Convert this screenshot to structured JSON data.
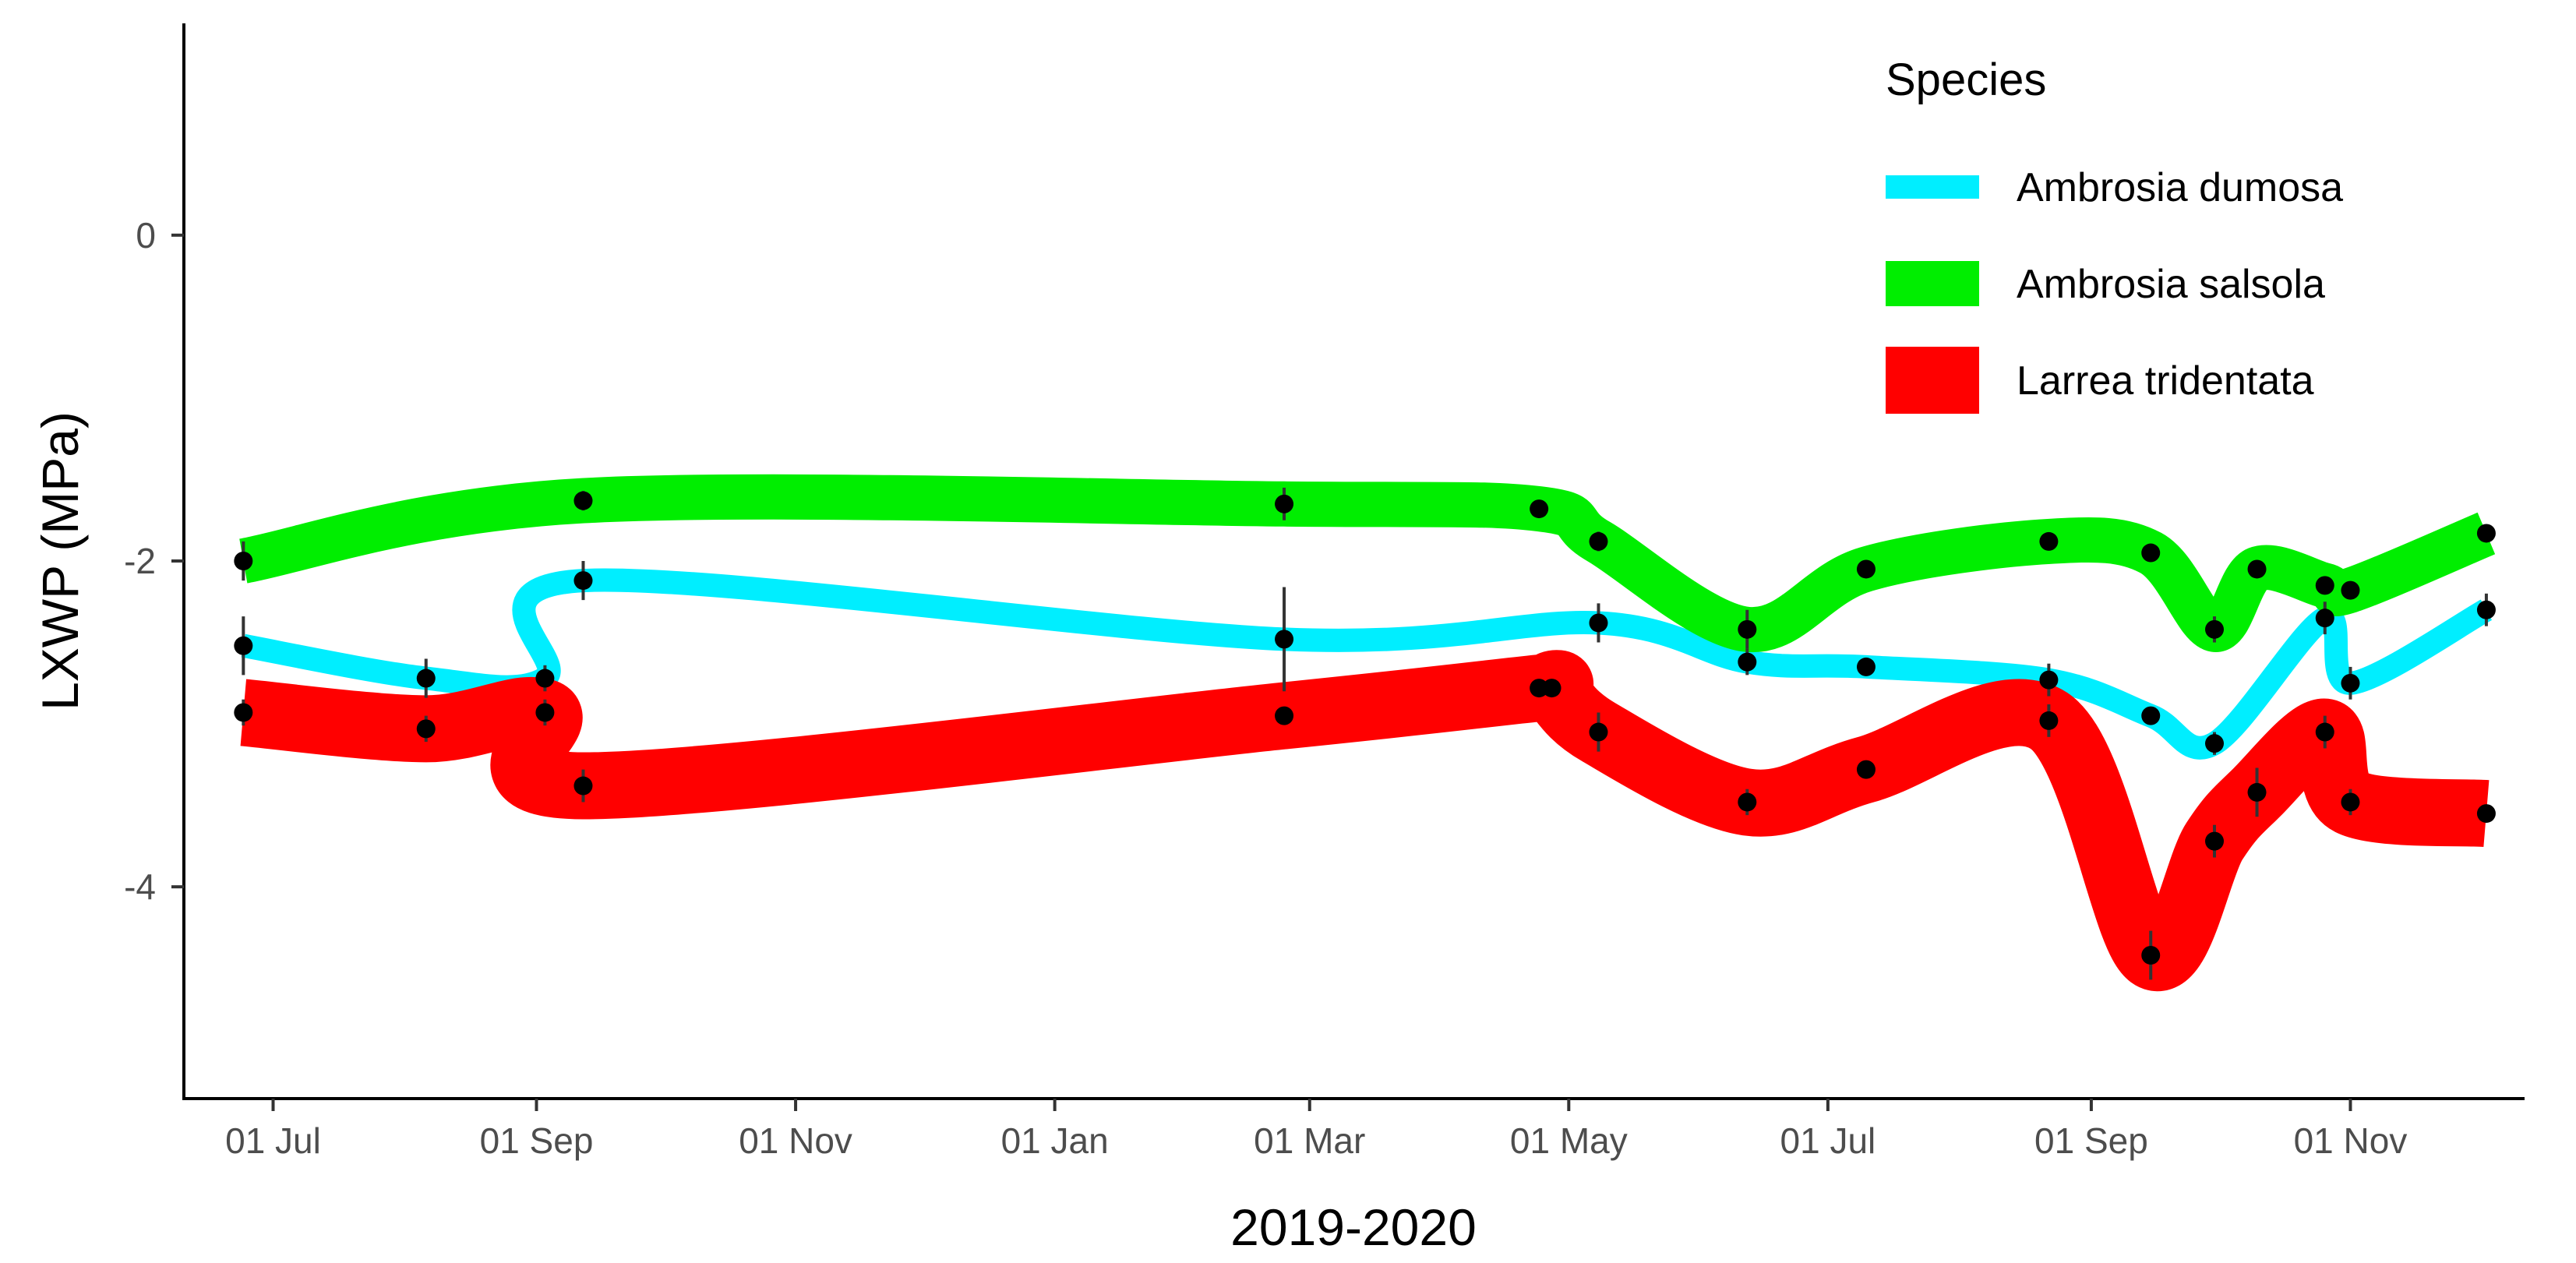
{
  "chart_data": {
    "type": "line",
    "xlabel": "2019-2020",
    "ylabel": "LXWP (MPa)",
    "xlim": [
      "2019-06-10",
      "2020-12-12"
    ],
    "ylim": [
      -5.3,
      1.3
    ],
    "x_ticks": [
      {
        "date": "2019-07-01",
        "label": "01 Jul"
      },
      {
        "date": "2019-09-01",
        "label": "01 Sep"
      },
      {
        "date": "2019-11-01",
        "label": "01 Nov"
      },
      {
        "date": "2020-01-01",
        "label": "01 Jan"
      },
      {
        "date": "2020-03-01",
        "label": "01 Mar"
      },
      {
        "date": "2020-05-01",
        "label": "01 May"
      },
      {
        "date": "2020-07-01",
        "label": "01 Jul"
      },
      {
        "date": "2020-09-01",
        "label": "01 Sep"
      },
      {
        "date": "2020-11-01",
        "label": "01 Nov"
      }
    ],
    "y_ticks": [
      {
        "value": 0,
        "label": "0"
      },
      {
        "value": -2,
        "label": "-2"
      },
      {
        "value": -4,
        "label": "-4"
      }
    ],
    "grid": false,
    "legend": {
      "title": "Species",
      "position": "top-right"
    },
    "series": [
      {
        "name": "Ambrosia dumosa",
        "color": "#00eeff",
        "points": [
          {
            "date": "2019-06-24",
            "mean": -2.52,
            "se": 0.18
          },
          {
            "date": "2019-08-06",
            "mean": -2.72,
            "se": 0.12
          },
          {
            "date": "2019-09-03",
            "mean": -2.72,
            "se": 0.08
          },
          {
            "date": "2019-09-12",
            "mean": -2.12,
            "se": 0.12
          },
          {
            "date": "2020-02-24",
            "mean": -2.48,
            "se": 0.32
          },
          {
            "date": "2020-05-08",
            "mean": -2.38,
            "se": 0.12
          },
          {
            "date": "2020-06-12",
            "mean": -2.62,
            "se": 0.08
          },
          {
            "date": "2020-07-10",
            "mean": -2.65,
            "se": 0.05
          },
          {
            "date": "2020-08-22",
            "mean": -2.73,
            "se": 0.1
          },
          {
            "date": "2020-09-15",
            "mean": -2.95,
            "se": 0.05
          },
          {
            "date": "2020-09-30",
            "mean": -3.12,
            "se": 0.07
          },
          {
            "date": "2020-10-26",
            "mean": -2.35,
            "se": 0.1
          },
          {
            "date": "2020-11-01",
            "mean": -2.75,
            "se": 0.1
          },
          {
            "date": "2020-12-03",
            "mean": -2.3,
            "se": 0.1
          }
        ]
      },
      {
        "name": "Ambrosia salsola",
        "color": "#00ee00",
        "points": [
          {
            "date": "2019-06-24",
            "mean": -2.0,
            "se": 0.12
          },
          {
            "date": "2019-09-12",
            "mean": -1.63,
            "se": 0.06
          },
          {
            "date": "2020-02-24",
            "mean": -1.65,
            "se": 0.1
          },
          {
            "date": "2020-04-24",
            "mean": -1.68,
            "se": 0.05
          },
          {
            "date": "2020-05-08",
            "mean": -1.88,
            "se": 0.06
          },
          {
            "date": "2020-06-12",
            "mean": -2.42,
            "se": 0.12
          },
          {
            "date": "2020-07-10",
            "mean": -2.05,
            "se": 0.05
          },
          {
            "date": "2020-08-22",
            "mean": -1.88,
            "se": 0.05
          },
          {
            "date": "2020-09-15",
            "mean": -1.95,
            "se": 0.05
          },
          {
            "date": "2020-09-30",
            "mean": -2.42,
            "se": 0.08
          },
          {
            "date": "2020-10-10",
            "mean": -2.05,
            "se": 0.05
          },
          {
            "date": "2020-10-26",
            "mean": -2.15,
            "se": 0.05
          },
          {
            "date": "2020-11-01",
            "mean": -2.18,
            "se": 0.05
          },
          {
            "date": "2020-12-03",
            "mean": -1.83,
            "se": 0.05
          }
        ]
      },
      {
        "name": "Larrea tridentata",
        "color": "#ff0000",
        "points": [
          {
            "date": "2019-06-24",
            "mean": -2.93,
            "se": 0.08
          },
          {
            "date": "2019-08-06",
            "mean": -3.03,
            "se": 0.08
          },
          {
            "date": "2019-09-03",
            "mean": -2.93,
            "se": 0.08
          },
          {
            "date": "2019-09-12",
            "mean": -3.38,
            "se": 0.1
          },
          {
            "date": "2020-02-24",
            "mean": -2.95,
            "se": 0.05
          },
          {
            "date": "2020-04-24",
            "mean": -2.78,
            "se": 0.05
          },
          {
            "date": "2020-04-27",
            "mean": -2.78,
            "se": 0.05
          },
          {
            "date": "2020-05-08",
            "mean": -3.05,
            "se": 0.12
          },
          {
            "date": "2020-06-12",
            "mean": -3.48,
            "se": 0.08
          },
          {
            "date": "2020-07-10",
            "mean": -3.28,
            "se": 0.05
          },
          {
            "date": "2020-08-22",
            "mean": -2.98,
            "se": 0.1
          },
          {
            "date": "2020-09-15",
            "mean": -4.42,
            "se": 0.15
          },
          {
            "date": "2020-09-30",
            "mean": -3.72,
            "se": 0.1
          },
          {
            "date": "2020-10-10",
            "mean": -3.42,
            "se": 0.15
          },
          {
            "date": "2020-10-26",
            "mean": -3.05,
            "se": 0.1
          },
          {
            "date": "2020-11-01",
            "mean": -3.48,
            "se": 0.08
          },
          {
            "date": "2020-12-03",
            "mean": -3.55,
            "se": 0.05
          }
        ]
      }
    ]
  }
}
